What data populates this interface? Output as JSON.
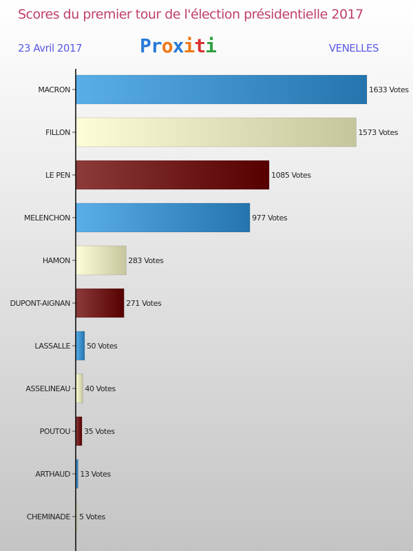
{
  "header": {
    "title": "Scores du premier tour de l'élection présidentielle 2017",
    "date": "23 Avril 2017",
    "place": "VENELLES",
    "logo": "Proxiti"
  },
  "colors": {
    "blue": [
      "#5aaee8",
      "#2574ae"
    ],
    "cream": [
      "#fdfdd8",
      "#c6c69e"
    ],
    "red": [
      "#8c3a3a",
      "#560000"
    ],
    "logo": [
      "#2a7ad8",
      "#2a7ad8",
      "#f07818",
      "#2a7ad8",
      "#f07818",
      "#d83030",
      "#30a040"
    ]
  },
  "chart_data": {
    "type": "bar",
    "orientation": "horizontal",
    "title": "Scores du premier tour de l'élection présidentielle 2017",
    "categories": [
      "MACRON",
      "FILLON",
      "LE PEN",
      "MELENCHON",
      "HAMON",
      "DUPONT-AIGNAN",
      "LASSALLE",
      "ASSELINEAU",
      "POUTOU",
      "ARTHAUD",
      "CHEMINADE"
    ],
    "values": [
      1633,
      1573,
      1085,
      977,
      283,
      271,
      50,
      40,
      35,
      13,
      5
    ],
    "bar_colors": [
      "blue",
      "cream",
      "red",
      "blue",
      "cream",
      "red",
      "blue",
      "cream",
      "red",
      "blue",
      "cream"
    ],
    "value_suffix": " Votes",
    "value_labels": [
      "1633 Votes",
      "1573 Votes",
      "1085 Votes",
      "977 Votes",
      "283 Votes",
      "271 Votes",
      "50 Votes",
      "40 Votes",
      "35 Votes",
      "13 Votes",
      "5 Votes"
    ],
    "xlim": [
      0,
      1633
    ]
  }
}
